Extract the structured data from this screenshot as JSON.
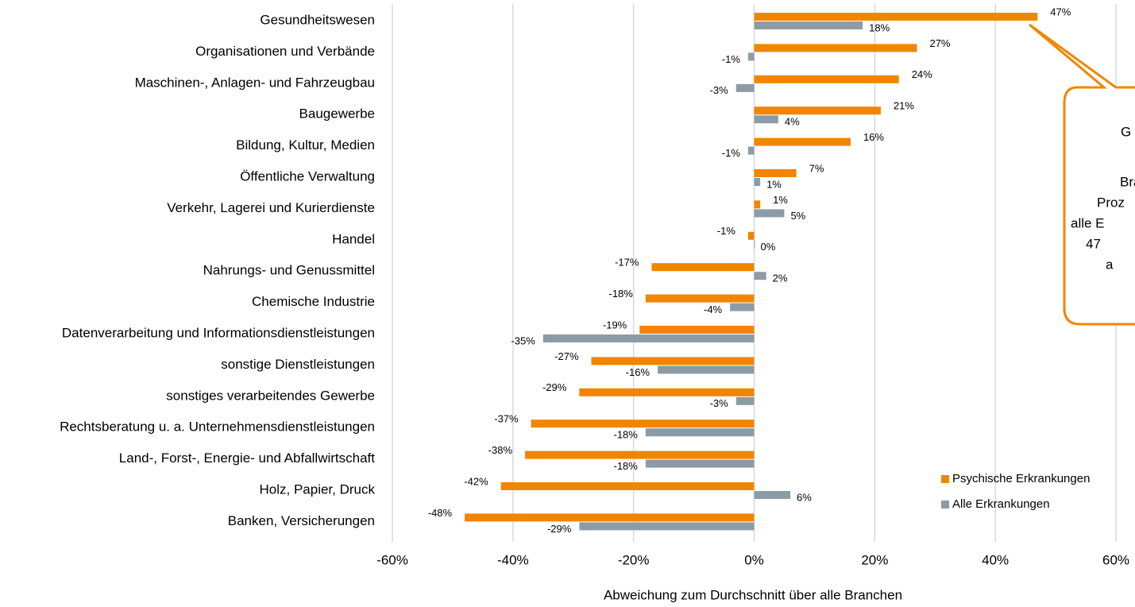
{
  "chart_data": {
    "type": "bar",
    "orientation": "horizontal",
    "x_label": "Abweichung zum Durchschnitt über alle Branchen",
    "categories": [
      "Gesundheitswesen",
      "Organisationen und Verbände",
      "Maschinen-, Anlagen- und Fahrzeugbau",
      "Baugewerbe",
      "Bildung, Kultur, Medien",
      "Öffentliche Verwaltung",
      "Verkehr, Lagerei und Kurierdienste",
      "Handel",
      "Nahrungs- und Genussmittel",
      "Chemische Industrie",
      "Datenverarbeitung und Informationsdienstleistungen",
      "sonstige Dienstleistungen",
      "sonstiges verarbeitendes Gewerbe",
      "Rechtsberatung u. a. Unternehmensdienstleistungen",
      "Land-, Forst-,  Energie- und Abfallwirtschaft",
      "Holz, Papier, Druck",
      "Banken, Versicherungen"
    ],
    "series": [
      {
        "name": "Psychische Erkrankungen",
        "color": "#f28500",
        "values": [
          47,
          27,
          24,
          21,
          16,
          7,
          1,
          -1,
          -17,
          -18,
          -19,
          -27,
          -29,
          -37,
          -38,
          -42,
          -48
        ],
        "value_labels": [
          "47%",
          "27%",
          "24%",
          "21%",
          "16%",
          "7%",
          "1%",
          "-1%",
          "-17%",
          "-18%",
          "-19%",
          "-27%",
          "-29%",
          "-37%",
          "-38%",
          "-42%",
          "-48%"
        ]
      },
      {
        "name": "Alle  Erkrankungen",
        "color": "#8c9ca6",
        "values": [
          18,
          -1,
          -3,
          4,
          -1,
          1,
          5,
          0,
          2,
          -4,
          -35,
          -16,
          -3,
          -18,
          -18,
          6,
          -29
        ],
        "value_labels": [
          "18%",
          "-1%",
          "-3%",
          "4%",
          "-1%",
          "1%",
          "5%",
          "0%",
          "2%",
          "-4%",
          "-35%",
          "-16%",
          "-3%",
          "-18%",
          "-18%",
          "6%",
          "-29%"
        ]
      }
    ],
    "xlim": [
      -60,
      60
    ],
    "xticks": [
      {
        "value": -60,
        "label": "-60%"
      },
      {
        "value": -40,
        "label": "-40%"
      },
      {
        "value": -20,
        "label": "-20%"
      },
      {
        "value": 0,
        "label": "0%"
      },
      {
        "value": 20,
        "label": "20%"
      },
      {
        "value": 40,
        "label": "40%"
      },
      {
        "value": 60,
        "label": "60%"
      }
    ],
    "grid": true,
    "legend": "lower right",
    "annotation": [
      "G",
      "Bra",
      "Proz",
      "alle E",
      "47",
      "a"
    ]
  }
}
